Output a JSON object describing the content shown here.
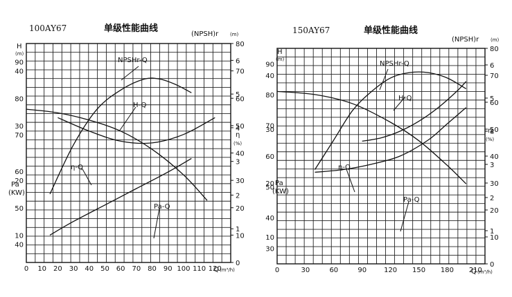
{
  "chart_data": [
    {
      "type": "line",
      "model": "100AY67",
      "title": "单级性能曲线",
      "x_axis": {
        "label": "Q",
        "unit": "(m³/h)",
        "ticks": [
          "0",
          "10",
          "20",
          "30",
          "40",
          "50",
          "60",
          "70",
          "80",
          "90",
          "100",
          "110",
          "120"
        ],
        "range": [
          0,
          130
        ]
      },
      "left_axis_h": {
        "label": "H",
        "unit": "(m)",
        "ticks": [
          "40",
          "50",
          "60",
          "70",
          "80",
          "90"
        ],
        "range": [
          35,
          95
        ]
      },
      "left_axis_pa": {
        "label": "Pa",
        "unit": "(KW)",
        "ticks": [
          "10",
          "20",
          "30",
          "40"
        ],
        "range": [
          5,
          45
        ]
      },
      "right_axis_npsh": {
        "label": "(NPSH)r",
        "unit": "(m)",
        "ticks": [
          "1",
          "2",
          "3",
          "4",
          "5",
          "6"
        ],
        "range": [
          0,
          6.5
        ]
      },
      "right_axis_eta": {
        "label": "η",
        "unit": "(%)",
        "ticks": [
          "0",
          "10",
          "20",
          "30",
          "40",
          "50",
          "60",
          "70",
          "80"
        ],
        "range": [
          0,
          80
        ]
      },
      "series": [
        {
          "name": "NPSHr-Q",
          "axis": "npsh",
          "x": [
            20,
            40,
            60,
            80,
            100,
            120
          ],
          "y": [
            4.3,
            3.9,
            3.6,
            3.55,
            3.8,
            4.3
          ]
        },
        {
          "name": "H-Q",
          "axis": "h",
          "x": [
            0,
            20,
            40,
            60,
            80,
            100,
            115
          ],
          "y": [
            77,
            76,
            74,
            71,
            66,
            59,
            52
          ]
        },
        {
          "name": "η-Q",
          "axis": "eta",
          "x": [
            15,
            30,
            45,
            60,
            75,
            85,
            95,
            105
          ],
          "y": [
            25,
            43,
            56,
            63,
            67,
            67,
            65,
            62
          ]
        },
        {
          "name": "Pa-Q",
          "axis": "pa",
          "x": [
            15,
            30,
            50,
            70,
            90,
            105
          ],
          "y": [
            10,
            12.5,
            15.5,
            18.5,
            21.5,
            24
          ]
        }
      ]
    },
    {
      "type": "line",
      "model": "150AY67",
      "title": "单级性能曲线",
      "x_axis": {
        "label": "Q",
        "unit": "(m³/h)",
        "ticks": [
          "0",
          "30",
          "60",
          "90",
          "120",
          "150",
          "180",
          "210"
        ],
        "range": [
          0,
          220
        ]
      },
      "left_axis_h": {
        "label": "H",
        "unit": "(m)",
        "ticks": [
          "30",
          "40",
          "50",
          "60",
          "70",
          "80",
          "90"
        ],
        "range": [
          25,
          95
        ]
      },
      "left_axis_pa": {
        "label": "Pa",
        "unit": "(KW)",
        "ticks": [
          "10",
          "20",
          "30",
          "40"
        ],
        "range": [
          5,
          45
        ]
      },
      "right_axis_npsh": {
        "label": "(NPSH)r",
        "unit": "(m)",
        "ticks": [
          "1",
          "2",
          "3",
          "4",
          "5",
          "6"
        ],
        "range": [
          0,
          6.5
        ]
      },
      "right_axis_eta": {
        "label": "η",
        "unit": "(%)",
        "ticks": [
          "0",
          "10",
          "20",
          "30",
          "40",
          "50",
          "60",
          "70",
          "80"
        ],
        "range": [
          0,
          80
        ]
      },
      "series": [
        {
          "name": "NPSHr-Q",
          "axis": "npsh",
          "x": [
            90,
            110,
            130,
            150,
            170,
            190,
            200
          ],
          "y": [
            3.7,
            3.8,
            4.0,
            4.3,
            4.7,
            5.2,
            5.5
          ]
        },
        {
          "name": "H-Q",
          "axis": "h",
          "x": [
            0,
            40,
            80,
            120,
            150,
            180,
            200
          ],
          "y": [
            81,
            80,
            77,
            71,
            65,
            57,
            51
          ]
        },
        {
          "name": "η-Q",
          "axis": "eta",
          "x": [
            40,
            60,
            80,
            100,
            120,
            140,
            160,
            180,
            200
          ],
          "y": [
            35,
            46,
            57,
            64,
            69,
            71,
            71,
            69,
            65
          ]
        },
        {
          "name": "Pa-Q",
          "axis": "pa",
          "x": [
            40,
            70,
            100,
            130,
            160,
            180,
            200
          ],
          "y": [
            22,
            22.5,
            23.5,
            25,
            28,
            31,
            34
          ]
        }
      ]
    }
  ]
}
